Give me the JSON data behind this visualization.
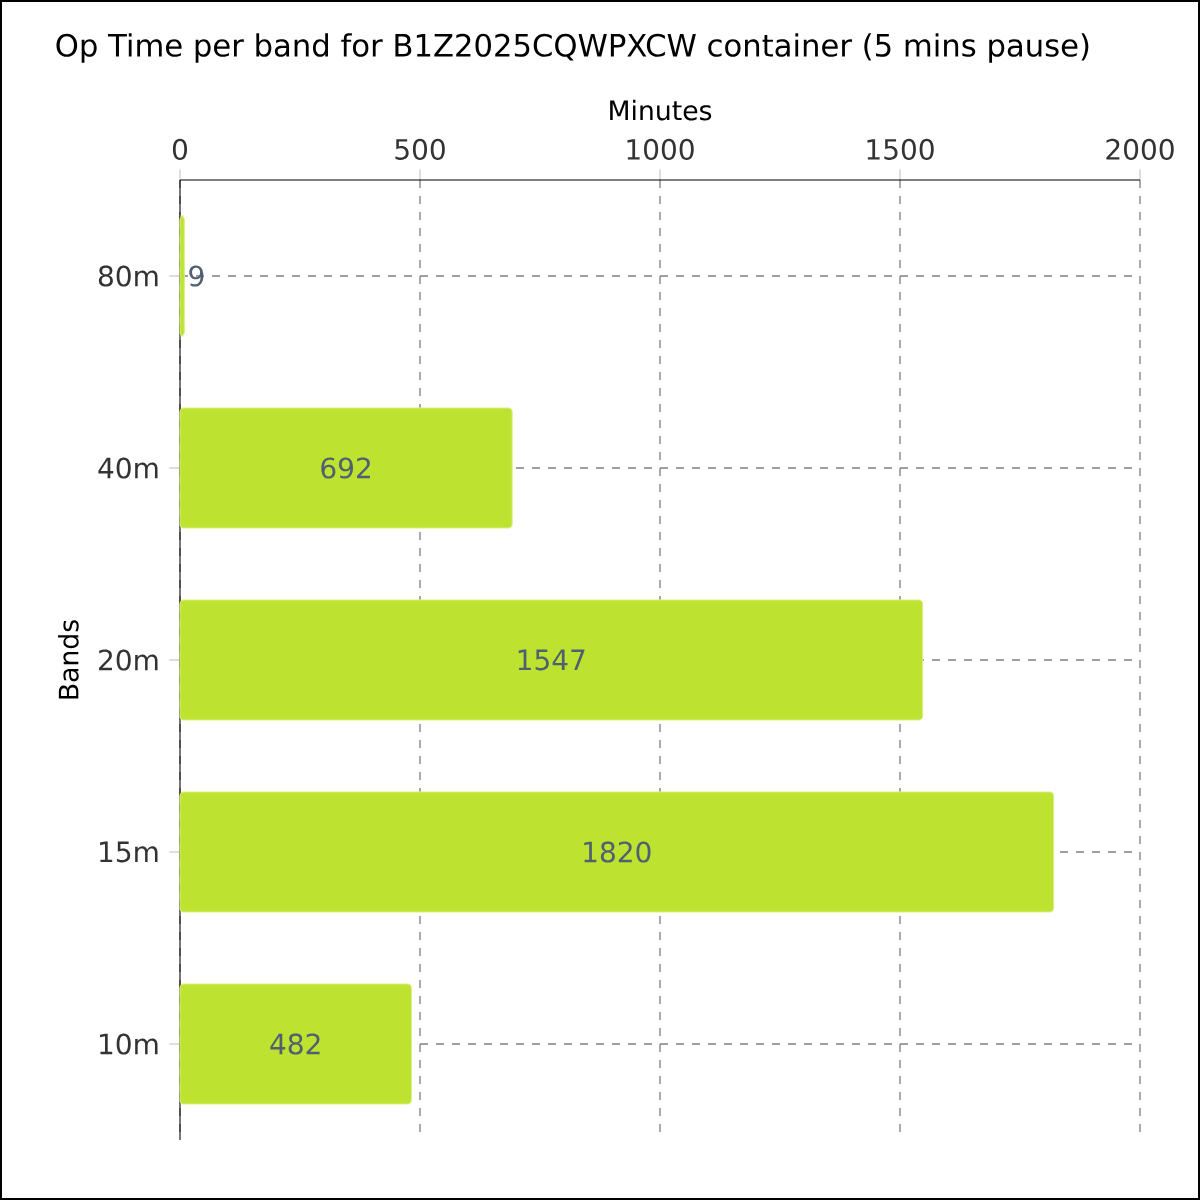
{
  "chart_data": {
    "type": "bar",
    "orientation": "horizontal",
    "title": "Op Time per band for B1Z2025CQWPXCW container (5 mins pause)",
    "xlabel": "Minutes",
    "ylabel": "Bands",
    "categories": [
      "80m",
      "40m",
      "20m",
      "15m",
      "10m"
    ],
    "values": [
      9,
      692,
      1547,
      1820,
      482
    ],
    "color": "#bde22f",
    "xlim": [
      0,
      2000
    ],
    "xticks": [
      0,
      500,
      1000,
      1500,
      2000
    ],
    "grid": true,
    "data_labels": true
  }
}
